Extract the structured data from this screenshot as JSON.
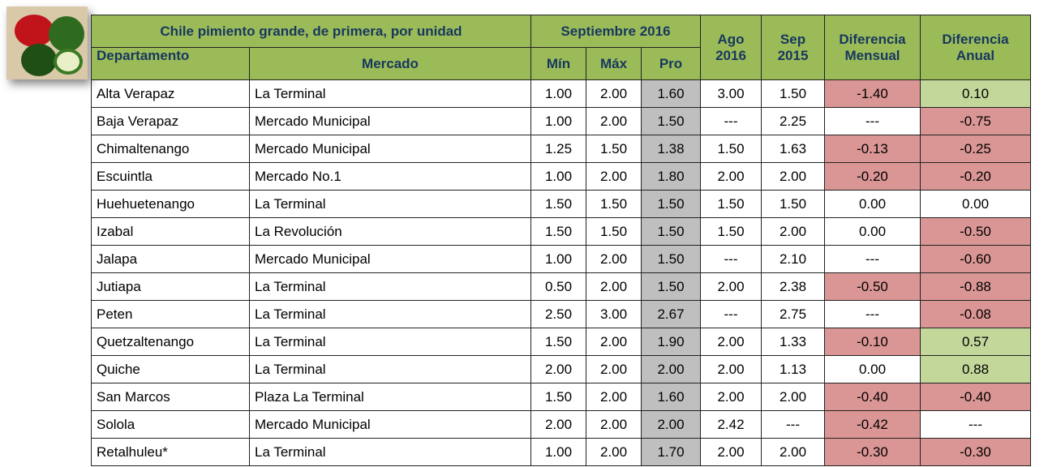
{
  "table": {
    "title": "Chile pimiento grande, de primera, por unidad",
    "period": "Septiembre 2016",
    "columns": [
      [
        "Departamento"
      ],
      [
        "Mercado"
      ],
      [
        "Mín"
      ],
      [
        "Máx"
      ],
      [
        "Pro"
      ],
      [
        "Ago",
        "2016"
      ],
      [
        "Sep",
        "2015"
      ],
      [
        "Diferencia",
        "Mensual"
      ],
      [
        "Diferencia",
        "Anual"
      ]
    ],
    "rows": [
      [
        "Alta Verapaz",
        "La Terminal",
        "1.00",
        "2.00",
        "1.60",
        "3.00",
        "1.50",
        "-1.40",
        "0.10"
      ],
      [
        "Baja Verapaz",
        "Mercado Municipal",
        "1.00",
        "2.00",
        "1.50",
        "---",
        "2.25",
        "---",
        "-0.75"
      ],
      [
        "Chimaltenango",
        "Mercado Municipal",
        "1.25",
        "1.50",
        "1.38",
        "1.50",
        "1.63",
        "-0.13",
        "-0.25"
      ],
      [
        "Escuintla",
        "Mercado No.1",
        "1.00",
        "2.00",
        "1.80",
        "2.00",
        "2.00",
        "-0.20",
        "-0.20"
      ],
      [
        "Huehuetenango",
        "La Terminal",
        "1.50",
        "1.50",
        "1.50",
        "1.50",
        "1.50",
        "0.00",
        "0.00"
      ],
      [
        "Izabal",
        "La Revolución",
        "1.50",
        "1.50",
        "1.50",
        "1.50",
        "2.00",
        "0.00",
        "-0.50"
      ],
      [
        "Jalapa",
        "Mercado Municipal",
        "1.00",
        "2.00",
        "1.50",
        "---",
        "2.10",
        "---",
        "-0.60"
      ],
      [
        "Jutiapa",
        "La Terminal",
        "0.50",
        "2.00",
        "1.50",
        "2.00",
        "2.38",
        "-0.50",
        "-0.88"
      ],
      [
        "Peten",
        "La Terminal",
        "2.50",
        "3.00",
        "2.67",
        "---",
        "2.75",
        "---",
        "-0.08"
      ],
      [
        "Quetzaltenango",
        "La Terminal",
        "1.50",
        "2.00",
        "1.90",
        "2.00",
        "1.33",
        "-0.10",
        "0.57"
      ],
      [
        "Quiche",
        "La Terminal",
        "2.00",
        "2.00",
        "2.00",
        "2.00",
        "1.13",
        "0.00",
        "0.88"
      ],
      [
        "San Marcos",
        "Plaza La Terminal",
        "1.50",
        "2.00",
        "1.60",
        "2.00",
        "2.00",
        "-0.40",
        "-0.40"
      ],
      [
        "Solola",
        "Mercado Municipal",
        "2.00",
        "2.00",
        "2.00",
        "2.42",
        "---",
        "-0.42",
        "---"
      ],
      [
        "Retalhuleu*",
        "La Terminal",
        "1.00",
        "2.00",
        "1.70",
        "2.00",
        "2.00",
        "-0.30",
        "-0.30"
      ]
    ]
  }
}
